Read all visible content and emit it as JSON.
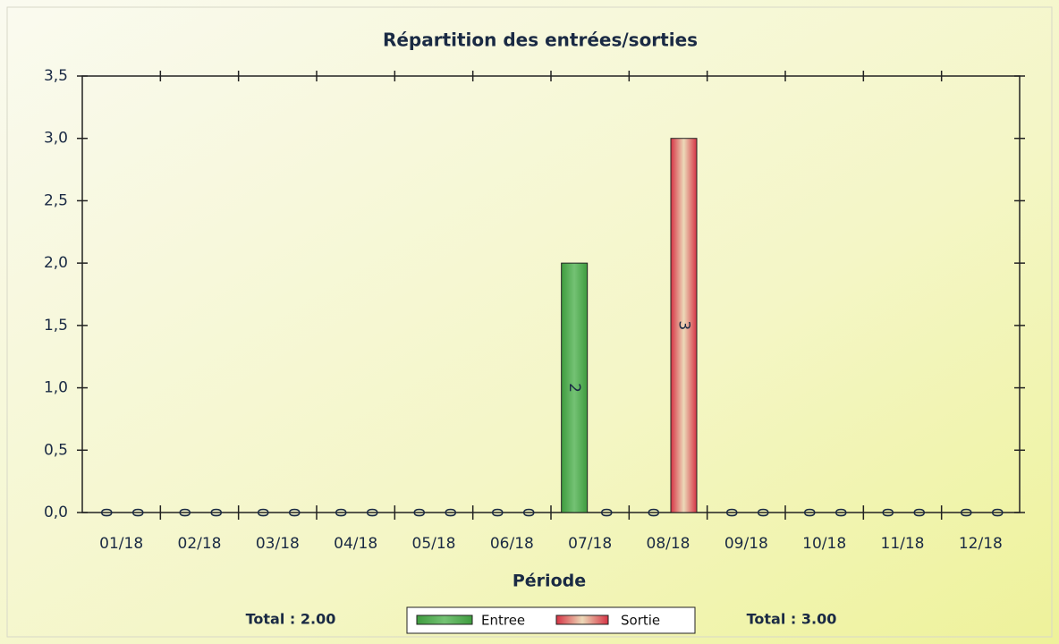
{
  "chart_data": {
    "type": "bar",
    "title": "Répartition des entrées/sorties",
    "x_label": "Période",
    "categories": [
      "01/18",
      "02/18",
      "03/18",
      "04/18",
      "05/18",
      "06/18",
      "07/18",
      "08/18",
      "09/18",
      "10/18",
      "11/18",
      "12/18"
    ],
    "series": [
      {
        "name": "Entree",
        "color": "#3f9c3f",
        "values": [
          0,
          0,
          0,
          0,
          0,
          0,
          2,
          0,
          0,
          0,
          0,
          0
        ]
      },
      {
        "name": "Sortie",
        "color": "#d63345",
        "values": [
          0,
          0,
          0,
          0,
          0,
          0,
          0,
          3,
          0,
          0,
          0,
          0
        ]
      }
    ],
    "ylim": [
      0,
      3.5
    ],
    "yticks": [
      {
        "value": 0,
        "label": "0,0"
      },
      {
        "value": 0.5,
        "label": "0,5"
      },
      {
        "value": 1,
        "label": "1,0"
      },
      {
        "value": 1.5,
        "label": "1,5"
      },
      {
        "value": 2,
        "label": "2,0"
      },
      {
        "value": 2.5,
        "label": "2,5"
      },
      {
        "value": 3,
        "label": "3,0"
      },
      {
        "value": 3.5,
        "label": "3,5"
      }
    ],
    "totals": [
      "Total : 2.00",
      "Total : 3.00"
    ],
    "legend": "bottom"
  }
}
